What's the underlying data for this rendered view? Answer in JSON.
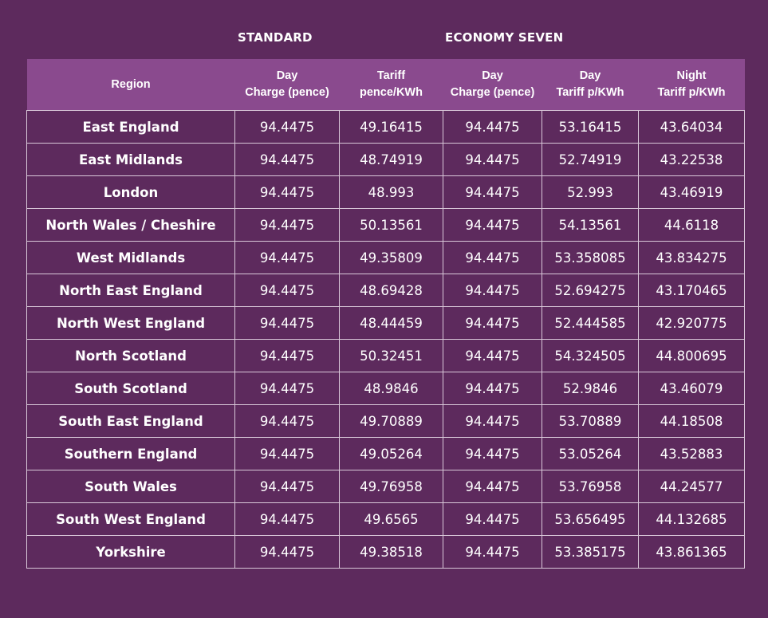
{
  "groups": {
    "standard": "STANDARD",
    "economy_seven": "ECONOMY SEVEN"
  },
  "headers": {
    "region": "Region",
    "standard_day_charge": [
      "Day",
      "Charge (pence)"
    ],
    "standard_tariff": [
      "Tariff",
      "pence/KWh"
    ],
    "e7_day_charge": [
      "Day",
      "Charge (pence)"
    ],
    "e7_day_tariff": [
      "Day",
      "Tariff p/KWh"
    ],
    "e7_night_tariff": [
      "Night",
      "Tariff p/KWh"
    ]
  },
  "rows": [
    {
      "region": "East England",
      "std_day": "94.4475",
      "std_tariff": "49.16415",
      "e7_day": "94.4475",
      "e7_day_tariff": "53.16415",
      "e7_night_tariff": "43.64034"
    },
    {
      "region": "East Midlands",
      "std_day": "94.4475",
      "std_tariff": "48.74919",
      "e7_day": "94.4475",
      "e7_day_tariff": "52.74919",
      "e7_night_tariff": "43.22538"
    },
    {
      "region": "London",
      "std_day": "94.4475",
      "std_tariff": "48.993",
      "e7_day": "94.4475",
      "e7_day_tariff": "52.993",
      "e7_night_tariff": "43.46919"
    },
    {
      "region": "North Wales / Cheshire",
      "std_day": "94.4475",
      "std_tariff": "50.13561",
      "e7_day": "94.4475",
      "e7_day_tariff": "54.13561",
      "e7_night_tariff": "44.6118"
    },
    {
      "region": "West Midlands",
      "std_day": "94.4475",
      "std_tariff": "49.35809",
      "e7_day": "94.4475",
      "e7_day_tariff": "53.358085",
      "e7_night_tariff": "43.834275"
    },
    {
      "region": "North East England",
      "std_day": "94.4475",
      "std_tariff": "48.69428",
      "e7_day": "94.4475",
      "e7_day_tariff": "52.694275",
      "e7_night_tariff": "43.170465"
    },
    {
      "region": "North West England",
      "std_day": "94.4475",
      "std_tariff": "48.44459",
      "e7_day": "94.4475",
      "e7_day_tariff": "52.444585",
      "e7_night_tariff": "42.920775"
    },
    {
      "region": "North Scotland",
      "std_day": "94.4475",
      "std_tariff": "50.32451",
      "e7_day": "94.4475",
      "e7_day_tariff": "54.324505",
      "e7_night_tariff": "44.800695"
    },
    {
      "region": "South Scotland",
      "std_day": "94.4475",
      "std_tariff": "48.9846",
      "e7_day": "94.4475",
      "e7_day_tariff": "52.9846",
      "e7_night_tariff": "43.46079"
    },
    {
      "region": "South East England",
      "std_day": "94.4475",
      "std_tariff": "49.70889",
      "e7_day": "94.4475",
      "e7_day_tariff": "53.70889",
      "e7_night_tariff": "44.18508"
    },
    {
      "region": "Southern England",
      "std_day": "94.4475",
      "std_tariff": "49.05264",
      "e7_day": "94.4475",
      "e7_day_tariff": "53.05264",
      "e7_night_tariff": "43.52883"
    },
    {
      "region": "South Wales",
      "std_day": "94.4475",
      "std_tariff": "49.76958",
      "e7_day": "94.4475",
      "e7_day_tariff": "53.76958",
      "e7_night_tariff": "44.24577"
    },
    {
      "region": "South West England",
      "std_day": "94.4475",
      "std_tariff": "49.6565",
      "e7_day": "94.4475",
      "e7_day_tariff": "53.656495",
      "e7_night_tariff": "44.132685"
    },
    {
      "region": "Yorkshire",
      "std_day": "94.4475",
      "std_tariff": "49.38518",
      "e7_day": "94.4475",
      "e7_day_tariff": "53.385175",
      "e7_night_tariff": "43.861365"
    }
  ],
  "colors": {
    "background": "#5d2a5d",
    "header_background": "#8a4a8e",
    "grid_lines": "#d9c8d9",
    "text": "#ffffff"
  }
}
